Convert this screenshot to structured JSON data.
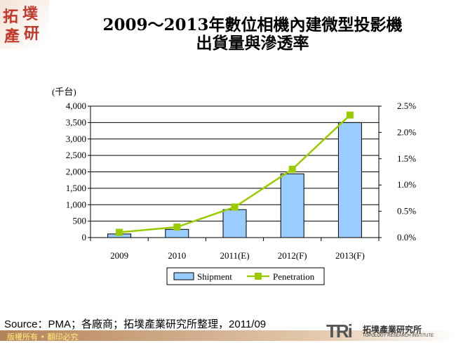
{
  "logo_text": [
    "拓",
    "墣",
    "產",
    "研"
  ],
  "title_line1": "2009～2013年數位相機內建微型投影機",
  "title_line2": "出貨量與滲透率",
  "chart_data": {
    "type": "bar+line",
    "categories": [
      "2009",
      "2010",
      "2011(E)",
      "2012(F)",
      "2013(F)"
    ],
    "series": [
      {
        "name": "Shipment",
        "type": "bar",
        "axis": "left",
        "values": [
          110,
          250,
          850,
          1940,
          3500
        ],
        "color": "#99ccff"
      },
      {
        "name": "Penetration",
        "type": "line",
        "axis": "right",
        "values": [
          0.1,
          0.2,
          0.58,
          1.3,
          2.33
        ],
        "color": "#99cc00"
      }
    ],
    "ylabel": "(千台)",
    "ylim": [
      0,
      4000
    ],
    "yticks": [
      "0",
      "500",
      "1,000",
      "1,500",
      "2,000",
      "2,500",
      "3,000",
      "3,500",
      "4,000"
    ],
    "y2lim": [
      0,
      2.5
    ],
    "y2ticks": [
      "0.0%",
      "0.5%",
      "1.0%",
      "1.5%",
      "2.0%",
      "2.5%"
    ],
    "grid": true,
    "legend": "bottom"
  },
  "source": "Source：PMA；各廠商；拓墣產業研究所整理，2011/09",
  "footer": "版權所有 • 翻印必究",
  "brand": {
    "mark": "TRi",
    "name": "拓墣產業研究所",
    "sub": "TOPOLOGY RESEARCH INSTITUTE"
  }
}
